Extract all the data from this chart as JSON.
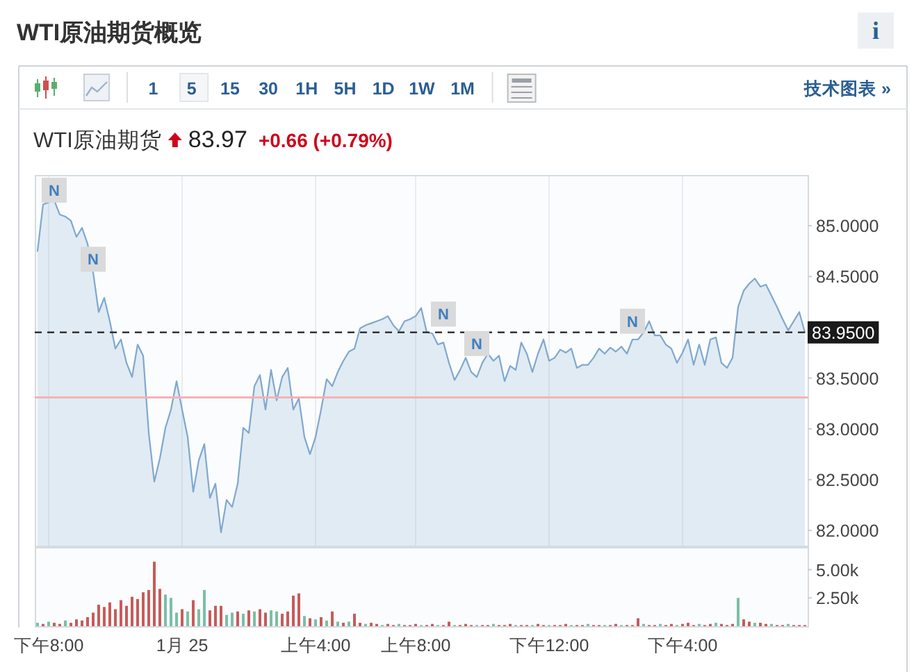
{
  "chart_data": [
    {
      "type": "area",
      "title": "WTI原油期货概览",
      "subtitle": "WTI原油期货 83.97 +0.66 (+0.79%)",
      "annotations": [
        "i",
        "1 5 15 30 1H 5H 1D 1W 1M",
        "技术图表 »"
      ],
      "categories": [
        null,
        null,
        null,
        null,
        null,
        null,
        null,
        null,
        null,
        null,
        null,
        null,
        null,
        null,
        null,
        null,
        null,
        null,
        null,
        null,
        null,
        null,
        null,
        null,
        null,
        null,
        null,
        null,
        null,
        null,
        null,
        null,
        null,
        null,
        null,
        null,
        null,
        null,
        null,
        null,
        null,
        null,
        null,
        null,
        null,
        null,
        null,
        null,
        null,
        null,
        null,
        null,
        null,
        null,
        null,
        null,
        null,
        null,
        null,
        null,
        null,
        null,
        null,
        null,
        null,
        null,
        null,
        null,
        null,
        null,
        null,
        null,
        null,
        null,
        null,
        null,
        null,
        null,
        null,
        null,
        null,
        null,
        null,
        null,
        null,
        null,
        null,
        null,
        null,
        null,
        null,
        null,
        null,
        null,
        null,
        null,
        null,
        null,
        null,
        null,
        null,
        null,
        null,
        null,
        null,
        null,
        null,
        null,
        null,
        null,
        null,
        null,
        null,
        null,
        null,
        null,
        null,
        null,
        null,
        null,
        null,
        null,
        null,
        null,
        null,
        null,
        null,
        null,
        null,
        null,
        null,
        null,
        null,
        null,
        null,
        null,
        null,
        null,
        null
      ],
      "series": [
        {
          "color": "#7fa8cf",
          "values": [
            84.75,
            85.21,
            85.23,
            85.25,
            85.11,
            85.09,
            85.05,
            84.89,
            84.98,
            84.82,
            84.54,
            84.15,
            84.29,
            84.06,
            83.79,
            83.88,
            83.65,
            83.51,
            83.83,
            83.72,
            82.96,
            82.48,
            82.71,
            83.01,
            83.19,
            83.47,
            83.19,
            82.92,
            82.38,
            82.69,
            82.85,
            82.32,
            82.46,
            81.98,
            82.3,
            82.23,
            82.46,
            83.01,
            82.96,
            83.42,
            83.53,
            83.19,
            83.58,
            83.28,
            83.51,
            83.6,
            83.19,
            83.3,
            82.92,
            82.75,
            82.92,
            83.19,
            83.49,
            83.42,
            83.56,
            83.67,
            83.76,
            83.79,
            83.99,
            84.02,
            84.04,
            84.06,
            84.08,
            84.11,
            84.02,
            83.96,
            84.06,
            84.08,
            84.11,
            84.19,
            83.95,
            83.94,
            83.83,
            83.85,
            83.65,
            83.48,
            83.58,
            83.7,
            83.56,
            83.51,
            83.65,
            83.74,
            83.67,
            83.72,
            83.47,
            83.62,
            83.58,
            83.85,
            83.74,
            83.56,
            83.74,
            83.88,
            83.67,
            83.7,
            83.78,
            83.75,
            83.79,
            83.6,
            83.63,
            83.63,
            83.7,
            83.79,
            83.74,
            83.8,
            83.76,
            83.81,
            83.74,
            83.88,
            83.88,
            83.95,
            84.06,
            83.92,
            83.92,
            83.83,
            83.79,
            83.65,
            83.75,
            83.88,
            83.63,
            83.83,
            83.63,
            83.88,
            83.9,
            83.65,
            83.6,
            83.7,
            84.2,
            84.36,
            84.43,
            84.48,
            84.4,
            84.42,
            84.31,
            84.2,
            84.08,
            83.97,
            84.06,
            84.15,
            83.95
          ]
        },
        {
          "type": "scatter",
          "name": "N",
          "color": "#dadada",
          "marker": "square",
          "values": [
            null,
            null,
            null,
            85.35,
            null,
            null,
            null,
            null,
            null,
            null,
            84.67,
            null,
            null,
            null,
            null,
            null,
            null,
            null,
            null,
            null,
            null,
            null,
            null,
            null,
            null,
            null,
            null,
            null,
            null,
            null,
            null,
            null,
            null,
            null,
            null,
            null,
            null,
            null,
            null,
            null,
            null,
            null,
            null,
            null,
            null,
            null,
            null,
            null,
            null,
            null,
            null,
            null,
            null,
            null,
            null,
            null,
            null,
            null,
            null,
            null,
            null,
            null,
            null,
            null,
            null,
            null,
            null,
            null,
            null,
            null,
            null,
            null,
            null,
            84.13,
            null,
            null,
            null,
            null,
            null,
            83.84,
            null,
            null,
            null,
            null,
            null,
            null,
            null,
            null,
            null,
            null,
            null,
            null,
            null,
            null,
            null,
            null,
            null,
            null,
            null,
            null,
            null,
            null,
            null,
            null,
            null,
            null,
            null,
            84.06,
            null,
            null,
            null,
            null,
            null,
            null,
            null,
            null,
            null,
            null,
            null,
            null,
            null,
            null,
            null,
            null,
            null,
            null,
            null,
            null,
            null,
            null,
            null,
            null,
            null,
            null,
            null,
            null,
            null,
            null,
            null
          ]
        }
      ],
      "ylim": [
        81.85,
        85.5
      ],
      "yticks": [
        {
          "value": 82,
          "label": "82.0000"
        },
        {
          "value": 82.5,
          "label": "82.5000"
        },
        {
          "value": 83,
          "label": "83.0000"
        },
        {
          "value": 83.5,
          "label": "83.5000"
        },
        {
          "value": 84.5,
          "label": "84.5000"
        },
        {
          "value": 85,
          "label": "85.0000"
        }
      ],
      "ref_lines": [
        {
          "axis": "y",
          "value": 83.95,
          "label": "83.9500",
          "color": "#333333",
          "line_style": "dashed"
        },
        {
          "axis": "y",
          "value": 83.31,
          "color": "#f3b3b3",
          "line_style": "solid"
        }
      ],
      "grid": "x"
    },
    {
      "type": "bar",
      "categories": [
        null,
        null,
        "下午8:00",
        null,
        null,
        null,
        null,
        null,
        null,
        null,
        null,
        null,
        null,
        null,
        null,
        null,
        null,
        null,
        null,
        null,
        null,
        null,
        null,
        null,
        null,
        null,
        "1月 25",
        null,
        null,
        null,
        null,
        null,
        null,
        null,
        null,
        null,
        null,
        null,
        null,
        null,
        null,
        null,
        null,
        null,
        null,
        null,
        null,
        null,
        null,
        null,
        "上午4:00",
        null,
        null,
        null,
        null,
        null,
        null,
        null,
        null,
        null,
        null,
        null,
        null,
        null,
        null,
        null,
        null,
        null,
        "上午8:00",
        null,
        null,
        null,
        null,
        null,
        null,
        null,
        null,
        null,
        null,
        null,
        null,
        null,
        null,
        null,
        null,
        null,
        null,
        null,
        null,
        null,
        null,
        null,
        "下午12:00",
        null,
        null,
        null,
        null,
        null,
        null,
        null,
        null,
        null,
        null,
        null,
        null,
        null,
        null,
        null,
        null,
        null,
        null,
        null,
        null,
        null,
        null,
        null,
        "下午4:00",
        null,
        null,
        null,
        null,
        null,
        null,
        null,
        null,
        null,
        null,
        null,
        null,
        null,
        null,
        null,
        null,
        null,
        null,
        null,
        null,
        null,
        null
      ],
      "values": [
        300,
        200,
        400,
        300,
        200,
        500,
        300,
        600,
        500,
        800,
        1200,
        1900,
        1700,
        2100,
        1500,
        2300,
        1800,
        2600,
        2400,
        3000,
        3200,
        5700,
        3300,
        2800,
        2500,
        1200,
        1500,
        1300,
        2300,
        1500,
        3200,
        1400,
        1800,
        1800,
        1000,
        1200,
        1300,
        1100,
        1400,
        1300,
        1500,
        1200,
        1400,
        1300,
        1100,
        1300,
        2700,
        2900,
        900,
        700,
        600,
        800,
        500,
        1300,
        400,
        300,
        400,
        1100,
        300,
        200,
        300,
        200,
        100,
        200,
        100,
        200,
        100,
        100,
        200,
        100,
        100,
        200,
        100,
        100,
        400,
        100,
        100,
        200,
        100,
        100,
        100,
        100,
        200,
        100,
        100,
        200,
        100,
        100,
        100,
        100,
        200,
        100,
        100,
        100,
        100,
        200,
        100,
        100,
        100,
        200,
        100,
        100,
        100,
        100,
        200,
        100,
        100,
        100,
        700,
        200,
        100,
        100,
        200,
        100,
        200,
        100,
        200,
        300,
        100,
        200,
        100,
        200,
        300,
        200,
        100,
        200,
        2500,
        600,
        400,
        300,
        300,
        200,
        200,
        100,
        100,
        200,
        100,
        100,
        100
      ],
      "colors": [
        "#7bbfa5",
        "#c75b5b",
        "#7bbfa5",
        "#c75b5b",
        "#c75b5b",
        "#7bbfa5",
        "#c75b5b",
        "#c75b5b",
        "#c75b5b",
        "#c75b5b",
        "#c75b5b",
        "#c75b5b",
        "#c75b5b",
        "#c75b5b",
        "#c75b5b",
        "#c75b5b",
        "#c75b5b",
        "#c75b5b",
        "#c75b5b",
        "#c75b5b",
        "#c75b5b",
        "#c75b5b",
        "#c75b5b",
        "#7bbfa5",
        "#7bbfa5",
        "#7bbfa5",
        "#c75b5b",
        "#7bbfa5",
        "#c75b5b",
        "#7bbfa5",
        "#7bbfa5",
        "#c75b5b",
        "#c75b5b",
        "#c75b5b",
        "#7bbfa5",
        "#7bbfa5",
        "#c75b5b",
        "#7bbfa5",
        "#c75b5b",
        "#7bbfa5",
        "#c75b5b",
        "#c75b5b",
        "#7bbfa5",
        "#7bbfa5",
        "#c75b5b",
        "#c75b5b",
        "#c75b5b",
        "#c75b5b",
        "#7bbfa5",
        "#c75b5b",
        "#7bbfa5",
        "#c75b5b",
        "#7bbfa5",
        "#c75b5b",
        "#7bbfa5",
        "#c75b5b",
        "#7bbfa5",
        "#c75b5b",
        "#c75b5b",
        "#7bbfa5",
        "#c75b5b",
        "#c75b5b",
        "#7bbfa5",
        "#c75b5b",
        "#c75b5b",
        "#7bbfa5",
        "#c75b5b",
        "#c75b5b",
        "#c75b5b",
        "#7bbfa5",
        "#c75b5b",
        "#c75b5b",
        "#7bbfa5",
        "#c75b5b",
        "#c75b5b",
        "#7bbfa5",
        "#c75b5b",
        "#c75b5b",
        "#c75b5b",
        "#7bbfa5",
        "#c75b5b",
        "#c75b5b",
        "#7bbfa5",
        "#c75b5b",
        "#c75b5b",
        "#c75b5b",
        "#7bbfa5",
        "#c75b5b",
        "#c75b5b",
        "#7bbfa5",
        "#c75b5b",
        "#c75b5b",
        "#7bbfa5",
        "#c75b5b",
        "#c75b5b",
        "#c75b5b",
        "#7bbfa5",
        "#c75b5b",
        "#c75b5b",
        "#7bbfa5",
        "#c75b5b",
        "#c75b5b",
        "#7bbfa5",
        "#c75b5b",
        "#c75b5b",
        "#7bbfa5",
        "#c75b5b",
        "#c75b5b",
        "#c75b5b",
        "#7bbfa5",
        "#c75b5b",
        "#c75b5b",
        "#7bbfa5",
        "#c75b5b",
        "#c75b5b",
        "#7bbfa5",
        "#c75b5b",
        "#c75b5b",
        "#c75b5b",
        "#7bbfa5",
        "#c75b5b",
        "#c75b5b",
        "#7bbfa5",
        "#c75b5b",
        "#c75b5b",
        "#c75b5b",
        "#7bbfa5",
        "#c75b5b",
        "#c75b5b",
        "#7bbfa5",
        "#c75b5b",
        "#c75b5b",
        "#7bbfa5",
        "#c75b5b",
        "#c75b5b",
        "#7bbfa5",
        "#c75b5b",
        "#c75b5b",
        "#c75b5b"
      ],
      "ylim": [
        0,
        7000
      ],
      "yticks": [
        {
          "value": 2500,
          "label": "2.50k"
        },
        {
          "value": 5000,
          "label": "5.00k"
        }
      ]
    }
  ]
}
